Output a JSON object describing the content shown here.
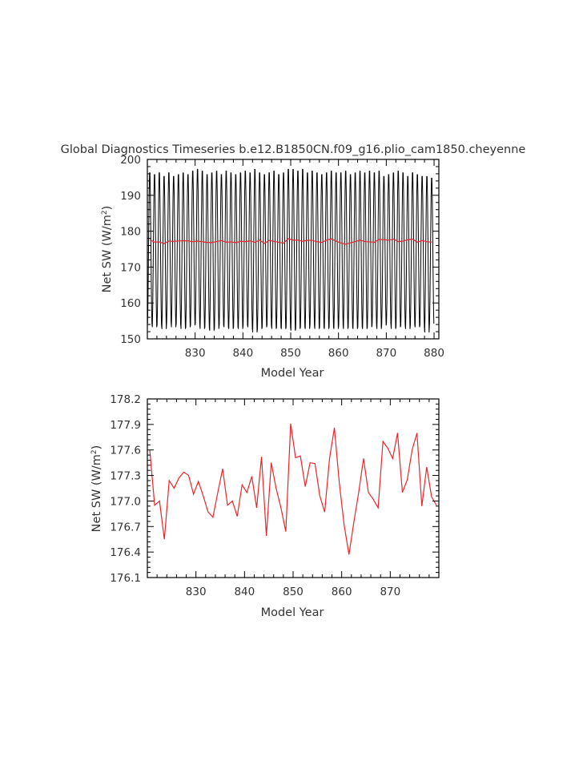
{
  "title": "Global Diagnostics Timeseries b.e12.B1850CN.f09_g16.plio_cam1850.cheyenne",
  "colors": {
    "monthly": "#000000",
    "annual": "#e8262c",
    "axis": "#000000"
  },
  "chart_data": [
    {
      "type": "line",
      "title": "Global Diagnostics Timeseries b.e12.B1850CN.f09_g16.plio_cam1850.cheyenne",
      "xlabel": "Model Year",
      "ylabel": "Net SW (W/m²)",
      "ylabel_base": "Net SW (W/m",
      "ylabel_sup": "2",
      "ylabel_end": ")",
      "xlim": [
        820,
        881
      ],
      "ylim": [
        150,
        200
      ],
      "xticks": [
        "830",
        "840",
        "850",
        "860",
        "870",
        "880"
      ],
      "yticks": [
        "150",
        "160",
        "170",
        "180",
        "190",
        "200"
      ],
      "grid": false,
      "series": [
        {
          "kind": "monthly",
          "color": "#000000",
          "start_year": 820,
          "cycle_months": 12,
          "min": [
            153.5,
            152.5,
            153.0,
            152.0,
            154.0,
            152.5,
            153.5,
            152.0,
            152.5,
            153.0,
            153.5,
            152.0,
            152.5,
            151.5,
            152.0,
            153.0,
            152.5,
            152.0,
            152.5,
            152.0,
            153.0,
            152.5,
            151.0,
            152.0,
            152.5,
            153.0,
            152.0,
            152.5,
            152.0,
            152.5,
            151.5,
            152.0,
            152.5,
            152.0,
            153.0,
            152.0,
            152.5,
            152.0,
            152.5,
            152.0,
            153.0,
            152.0,
            152.5,
            152.0,
            152.5,
            152.0,
            152.5,
            153.0,
            152.0,
            153.0,
            153.5,
            152.0,
            152.5,
            153.0,
            152.0,
            153.0,
            152.5,
            153.0,
            151.0,
            153.5
          ],
          "max": [
            197.0,
            196.5,
            197.0,
            196.0,
            197.0,
            196.0,
            196.5,
            197.0,
            196.5,
            197.5,
            198.0,
            197.5,
            196.5,
            197.0,
            197.5,
            196.5,
            197.5,
            197.0,
            196.5,
            197.0,
            197.5,
            197.0,
            198.0,
            197.0,
            196.5,
            197.0,
            197.5,
            196.5,
            197.0,
            198.0,
            198.0,
            197.5,
            198.0,
            197.0,
            197.5,
            197.0,
            196.5,
            197.0,
            197.5,
            197.0,
            197.0,
            197.5,
            196.5,
            197.0,
            197.5,
            197.0,
            197.5,
            197.0,
            197.5,
            196.0,
            196.5,
            197.0,
            197.5,
            197.0,
            196.0,
            197.0,
            196.5,
            196.0,
            196.0,
            195.5
          ]
        },
        {
          "kind": "annual",
          "color": "#e8262c",
          "x": [
            820.5,
            821.5,
            822.5,
            823.5,
            824.5,
            825.5,
            826.5,
            827.5,
            828.5,
            829.5,
            830.5,
            831.5,
            832.5,
            833.5,
            834.5,
            835.5,
            836.5,
            837.5,
            838.5,
            839.5,
            840.5,
            841.5,
            842.5,
            843.5,
            844.5,
            845.5,
            846.5,
            847.5,
            848.5,
            849.5,
            850.5,
            851.5,
            852.5,
            853.5,
            854.5,
            855.5,
            856.5,
            857.5,
            858.5,
            859.5,
            860.5,
            861.5,
            862.5,
            863.5,
            864.5,
            865.5,
            866.5,
            867.5,
            868.5,
            869.5,
            870.5,
            871.5,
            872.5,
            873.5,
            874.5,
            875.5,
            876.5,
            877.5,
            878.5,
            879.5
          ],
          "y": [
            177.6,
            176.95,
            177.0,
            176.55,
            177.24,
            177.15,
            177.27,
            177.34,
            177.3,
            177.08,
            177.23,
            177.06,
            176.87,
            176.81,
            177.1,
            177.38,
            176.95,
            177.0,
            176.82,
            177.19,
            177.1,
            177.29,
            176.92,
            177.52,
            176.59,
            177.45,
            177.15,
            176.92,
            176.64,
            177.91,
            177.51,
            177.53,
            177.17,
            177.45,
            177.44,
            177.06,
            176.87,
            177.5,
            177.86,
            177.22,
            176.72,
            176.37,
            176.75,
            177.1,
            177.5,
            177.1,
            177.02,
            176.92,
            177.7,
            177.62,
            177.5,
            177.8,
            177.1,
            177.25,
            177.6,
            177.8,
            176.94,
            177.4,
            177.05,
            176.95
          ]
        }
      ]
    },
    {
      "type": "line",
      "title": "",
      "xlabel": "Model Year",
      "ylabel": "Net SW (W/m²)",
      "ylabel_base": "Net SW (W/m",
      "ylabel_sup": "2",
      "ylabel_end": ")",
      "xlim": [
        820,
        880
      ],
      "ylim": [
        176.1,
        178.2
      ],
      "xticks": [
        "830",
        "840",
        "850",
        "860",
        "870"
      ],
      "yticks": [
        "176.1",
        "176.4",
        "176.7",
        "177.0",
        "177.3",
        "177.6",
        "177.9",
        "178.2"
      ],
      "grid": false,
      "series": [
        {
          "kind": "annual",
          "color": "#e8262c",
          "x": [
            820.5,
            821.5,
            822.5,
            823.5,
            824.5,
            825.5,
            826.5,
            827.5,
            828.5,
            829.5,
            830.5,
            831.5,
            832.5,
            833.5,
            834.5,
            835.5,
            836.5,
            837.5,
            838.5,
            839.5,
            840.5,
            841.5,
            842.5,
            843.5,
            844.5,
            845.5,
            846.5,
            847.5,
            848.5,
            849.5,
            850.5,
            851.5,
            852.5,
            853.5,
            854.5,
            855.5,
            856.5,
            857.5,
            858.5,
            859.5,
            860.5,
            861.5,
            862.5,
            863.5,
            864.5,
            865.5,
            866.5,
            867.5,
            868.5,
            869.5,
            870.5,
            871.5,
            872.5,
            873.5,
            874.5,
            875.5,
            876.5,
            877.5,
            878.5,
            879.5
          ],
          "y": [
            177.6,
            176.95,
            177.0,
            176.55,
            177.24,
            177.15,
            177.27,
            177.34,
            177.3,
            177.08,
            177.23,
            177.06,
            176.87,
            176.81,
            177.1,
            177.38,
            176.95,
            177.0,
            176.82,
            177.19,
            177.1,
            177.29,
            176.92,
            177.52,
            176.59,
            177.45,
            177.15,
            176.92,
            176.64,
            177.91,
            177.51,
            177.53,
            177.17,
            177.45,
            177.44,
            177.06,
            176.87,
            177.5,
            177.86,
            177.22,
            176.72,
            176.37,
            176.75,
            177.1,
            177.5,
            177.1,
            177.02,
            176.92,
            177.7,
            177.62,
            177.5,
            177.8,
            177.1,
            177.25,
            177.6,
            177.8,
            176.94,
            177.4,
            177.05,
            176.95
          ]
        }
      ]
    }
  ]
}
